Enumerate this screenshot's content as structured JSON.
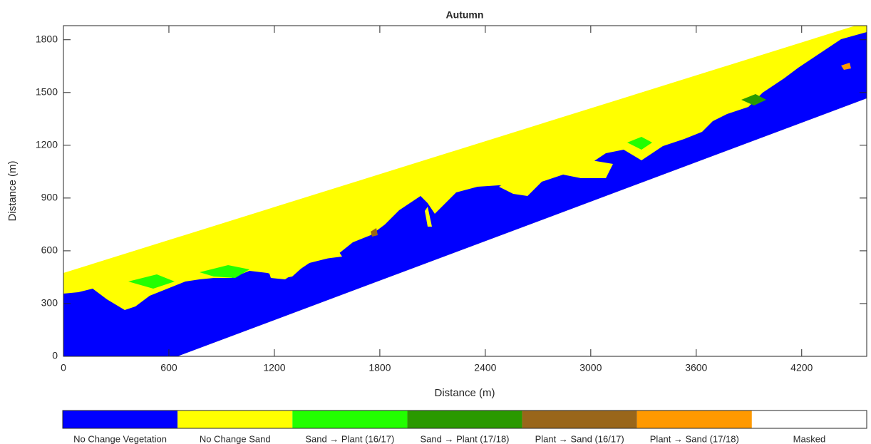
{
  "chart_data": {
    "type": "raster-map",
    "title": "Autumn",
    "x_label": "Distance (m)",
    "y_label": "Distance (m)",
    "xlim": [
      0,
      4570
    ],
    "ylim": [
      0,
      1880
    ],
    "xticks": [
      0,
      600,
      1200,
      1800,
      2400,
      3000,
      3600,
      4200
    ],
    "yticks": [
      0,
      300,
      600,
      900,
      1200,
      1500,
      1800
    ],
    "classes": [
      {
        "name": "No Change Vegetation",
        "color": "#0000ff"
      },
      {
        "name": "No Change Sand",
        "color": "#ffff00"
      },
      {
        "name": "Sand → Plant (16/17)",
        "color": "#22ff00"
      },
      {
        "name": "Sand → Plant (17/18)",
        "color": "#2a9900"
      },
      {
        "name": "Plant → Sand (16/17)",
        "color": "#99661a"
      },
      {
        "name": "Plant → Sand (17/18)",
        "color": "#ff9900"
      },
      {
        "name": "Masked",
        "color": "#ffffff"
      }
    ]
  }
}
